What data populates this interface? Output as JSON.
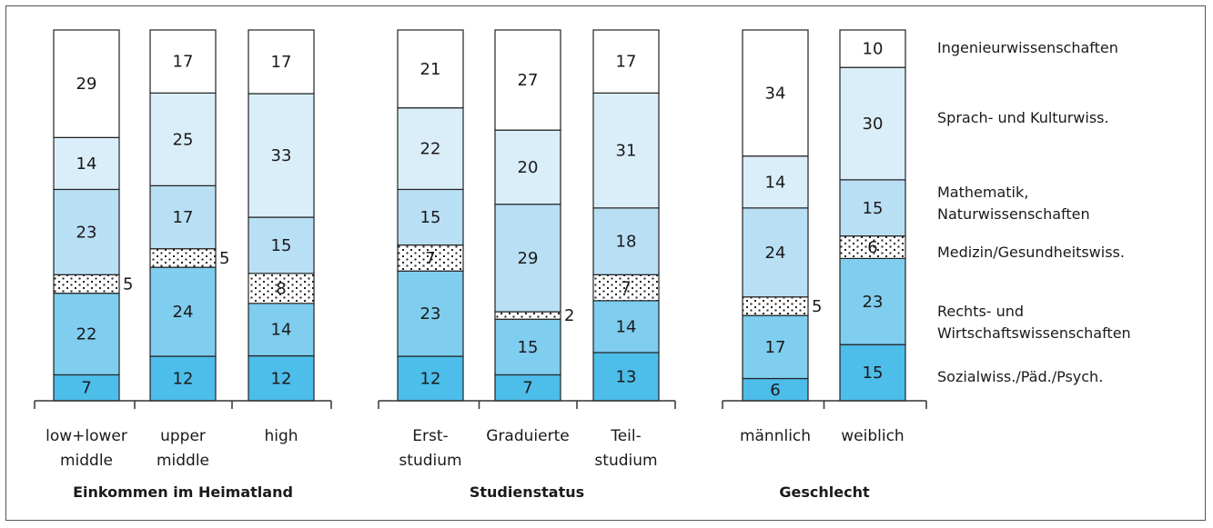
{
  "chart_data": {
    "type": "bar",
    "stacked": true,
    "segments": [
      {
        "name": "Sozialwiss./Päd./Psych.",
        "color": "#4dbde9"
      },
      {
        "name": "Rechts- und Wirtschaftswissenschaften",
        "color": "#7fcdef"
      },
      {
        "name": "Medizin/Gesundheitswiss.",
        "color": "#ffffff",
        "pattern": "dotted"
      },
      {
        "name": "Mathematik, Naturwissenschaften",
        "color": "#b9dff5"
      },
      {
        "name": "Sprach- und Kulturwiss.",
        "color": "#daeefa"
      },
      {
        "name": "Ingenieurwissenschaften",
        "color": "#ffffff"
      }
    ],
    "legend": [
      {
        "lines": [
          "Ingenieurwissenschaften"
        ]
      },
      {
        "lines": [
          "Sprach- und Kulturwiss."
        ]
      },
      {
        "lines": [
          "Mathematik,",
          "Naturwissenschaften"
        ]
      },
      {
        "lines": [
          "Medizin/Gesundheitswiss."
        ]
      },
      {
        "lines": [
          "Rechts- und",
          "Wirtschaftswissenschaften"
        ]
      },
      {
        "lines": [
          "Sozialwiss./Päd./Psych."
        ]
      }
    ],
    "groups": [
      {
        "label": "Einkommen im Heimatland",
        "bars": [
          {
            "label": [
              "low+lower",
              "middle"
            ],
            "values": [
              7,
              22,
              5,
              23,
              14,
              29
            ]
          },
          {
            "label": [
              "upper",
              "middle"
            ],
            "values": [
              12,
              24,
              5,
              17,
              25,
              17
            ]
          },
          {
            "label": [
              "high"
            ],
            "values": [
              12,
              14,
              8,
              15,
              33,
              17
            ]
          }
        ]
      },
      {
        "label": "Studienstatus",
        "bars": [
          {
            "label": [
              "Erst-",
              "studium"
            ],
            "values": [
              12,
              23,
              7,
              15,
              22,
              21
            ]
          },
          {
            "label": [
              "Graduierte"
            ],
            "values": [
              7,
              15,
              2,
              29,
              20,
              27
            ]
          },
          {
            "label": [
              "Teil-",
              "studium"
            ],
            "values": [
              13,
              14,
              7,
              18,
              31,
              17
            ]
          }
        ]
      },
      {
        "label": "Geschlecht",
        "bars": [
          {
            "label": [
              "männlich"
            ],
            "values": [
              6,
              17,
              5,
              24,
              14,
              34
            ]
          },
          {
            "label": [
              "weiblich"
            ],
            "values": [
              15,
              23,
              6,
              15,
              30,
              10
            ]
          }
        ]
      }
    ],
    "ylim": [
      0,
      100
    ]
  }
}
